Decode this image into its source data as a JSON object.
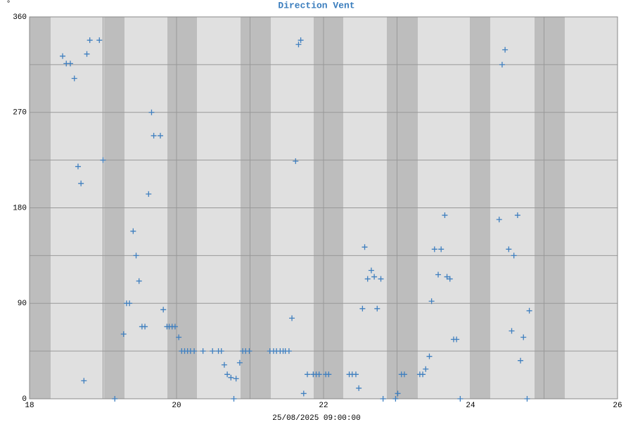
{
  "chart_data": {
    "type": "scatter",
    "title": "Direction Vent",
    "y_label": "°",
    "x_label": "25/08/2025 09:00:00",
    "color": "#3f7fbf",
    "marker": "+",
    "xlim": [
      18,
      26
    ],
    "xticks": [
      18,
      20,
      22,
      24,
      26
    ],
    "xminor": [
      19,
      21,
      23,
      25
    ],
    "ylim": [
      0,
      360
    ],
    "yticks": [
      0,
      90,
      180,
      270,
      360
    ],
    "yminor": [
      45,
      135,
      225,
      315
    ],
    "grid": true,
    "x": [
      18.45,
      18.5,
      18.555,
      18.61,
      18.66,
      18.7,
      18.74,
      18.78,
      18.82,
      18.95,
      19.0,
      19.16,
      19.28,
      19.32,
      19.36,
      19.41,
      19.45,
      19.49,
      19.53,
      19.57,
      19.62,
      19.66,
      19.69,
      19.78,
      19.82,
      19.87,
      19.9,
      19.94,
      19.98,
      20.03,
      20.07,
      20.11,
      20.15,
      20.19,
      20.24,
      20.36,
      20.49,
      20.57,
      20.61,
      20.65,
      20.69,
      20.74,
      20.78,
      20.81,
      20.86,
      20.9,
      20.94,
      20.99,
      21.27,
      21.32,
      21.36,
      21.41,
      21.45,
      21.48,
      21.53,
      21.57,
      21.62,
      21.66,
      21.69,
      21.73,
      21.78,
      21.86,
      21.9,
      21.94,
      22.03,
      22.07,
      22.35,
      22.39,
      22.44,
      22.48,
      22.53,
      22.56,
      22.6,
      22.65,
      22.69,
      22.73,
      22.78,
      22.81,
      22.98,
      23.01,
      23.06,
      23.1,
      23.31,
      23.35,
      23.39,
      23.44,
      23.47,
      23.51,
      23.56,
      23.6,
      23.65,
      23.68,
      23.72,
      23.77,
      23.81,
      23.86,
      24.39,
      24.43,
      24.47,
      24.52,
      24.56,
      24.59,
      24.64,
      24.68,
      24.72,
      24.77,
      24.8
    ],
    "values": [
      323,
      316,
      316,
      302,
      219,
      203,
      17,
      325,
      338,
      338,
      225,
      0,
      61,
      90,
      90,
      158,
      135,
      111,
      68,
      68,
      193,
      270,
      248,
      248,
      84,
      68,
      68,
      68,
      68,
      58,
      45,
      45,
      45,
      45,
      45,
      45,
      45,
      45,
      45,
      32,
      23,
      20,
      0,
      19,
      34,
      45,
      45,
      45,
      45,
      45,
      45,
      45,
      45,
      45,
      45,
      76,
      224,
      334,
      338,
      5,
      23,
      23,
      23,
      23,
      23,
      23,
      23,
      23,
      23,
      10,
      85,
      143,
      113,
      121,
      115,
      85,
      113,
      0,
      0,
      5,
      23,
      23,
      23,
      23,
      28,
      40,
      92,
      141,
      117,
      141,
      173,
      115,
      113,
      56,
      56,
      0,
      169,
      315,
      329,
      141,
      64,
      135,
      173,
      36,
      58,
      0,
      83
    ]
  }
}
